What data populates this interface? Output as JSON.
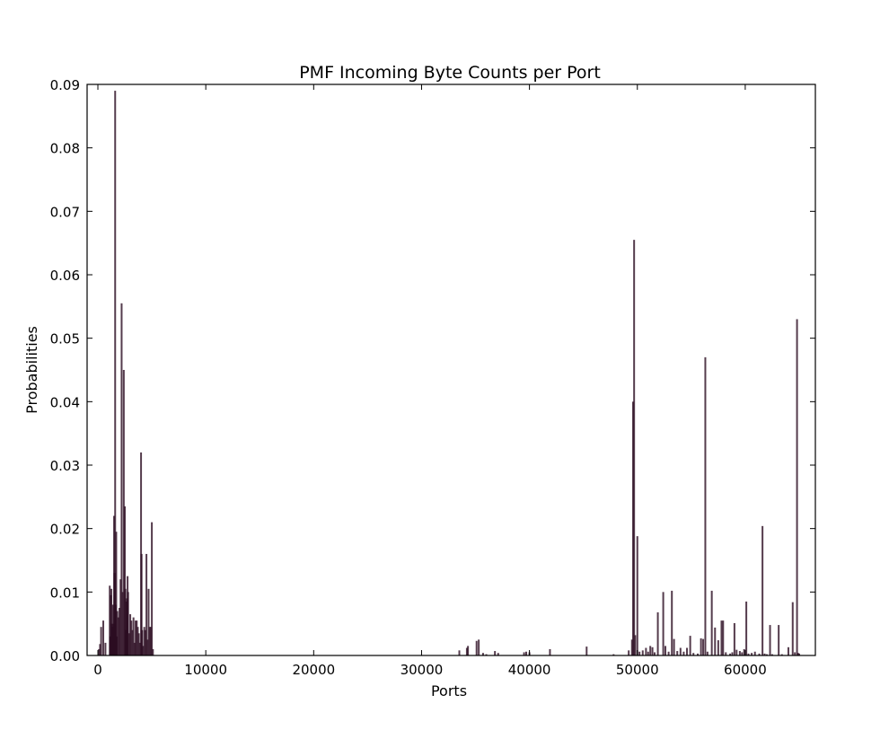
{
  "chart_data": {
    "type": "bar",
    "title": "PMF Incoming Byte Counts per Port",
    "xlabel": "Ports",
    "ylabel": "Probabilities",
    "xlim": [
      -1000,
      66500
    ],
    "ylim": [
      0,
      0.09
    ],
    "xticks": [
      0,
      10000,
      20000,
      30000,
      40000,
      50000,
      60000
    ],
    "xtick_labels": [
      "0",
      "10000",
      "20000",
      "30000",
      "40000",
      "50000",
      "60000"
    ],
    "yticks": [
      0,
      0.01,
      0.02,
      0.03,
      0.04,
      0.05,
      0.06,
      0.07,
      0.08,
      0.09
    ],
    "ytick_labels": [
      "0.00",
      "0.01",
      "0.02",
      "0.03",
      "0.04",
      "0.05",
      "0.06",
      "0.07",
      "0.08",
      "0.09"
    ],
    "grid": false,
    "bar_color": "#2a0b20",
    "series": [
      {
        "x": [
          100,
          200,
          300,
          500,
          700,
          1100,
          1150,
          1200,
          1250,
          1300,
          1350,
          1400,
          1450,
          1500,
          1550,
          1600,
          1650,
          1700,
          1750,
          1800,
          1900,
          2000,
          2100,
          2200,
          2300,
          2400,
          2500,
          2550,
          2600,
          2650,
          2700,
          2750,
          2800,
          2900,
          3000,
          3100,
          3200,
          3300,
          3400,
          3500,
          3600,
          3700,
          3800,
          3900,
          4000,
          4050,
          4100,
          4200,
          4300,
          4400,
          4500,
          4600,
          4700,
          4800,
          4900,
          5000,
          5100,
          33500,
          34200,
          34300,
          35100,
          35300,
          35700,
          36000,
          36800,
          37100,
          39500,
          39700,
          40000,
          41900,
          45300,
          47800,
          49200,
          49500,
          49600,
          49700,
          49800,
          50000,
          50200,
          50500,
          50800,
          51000,
          51200,
          51400,
          51600,
          51900,
          52400,
          52600,
          52900,
          53200,
          53400,
          53700,
          54000,
          54300,
          54600,
          54900,
          55200,
          55600,
          55900,
          56100,
          56300,
          56500,
          56900,
          57200,
          57500,
          57800,
          57950,
          58200,
          58600,
          58800,
          59000,
          59200,
          59500,
          59700,
          59900,
          60100,
          60300,
          60600,
          60900,
          61300,
          61600,
          61800,
          62000,
          62300,
          62500,
          63100,
          63400,
          64000,
          64400,
          64600,
          64800,
          64900,
          65000
        ],
        "values": [
          0.001,
          0.0018,
          0.0045,
          0.0055,
          0.002,
          0.011,
          0.003,
          0.0095,
          0.0105,
          0.005,
          0.0045,
          0.008,
          0.005,
          0.022,
          0.013,
          0.089,
          0.008,
          0.0195,
          0.003,
          0.007,
          0.006,
          0.0075,
          0.012,
          0.0555,
          0.01,
          0.045,
          0.0235,
          0.0105,
          0.004,
          0.0085,
          0.009,
          0.0125,
          0.01,
          0.0035,
          0.0065,
          0.0055,
          0.004,
          0.006,
          0.002,
          0.0055,
          0.0055,
          0.0045,
          0.0035,
          0.002,
          0.032,
          0.016,
          0.004,
          0.0015,
          0.0045,
          0.004,
          0.016,
          0.0025,
          0.0105,
          0.0045,
          0.0045,
          0.021,
          0.001,
          0.0008,
          0.0012,
          0.0015,
          0.0023,
          0.0025,
          0.0004,
          0.0002,
          0.0007,
          0.0004,
          0.0005,
          0.0006,
          0.0005,
          0.001,
          0.0014,
          0.0002,
          0.0008,
          0.0025,
          0.04,
          0.0655,
          0.0032,
          0.0188,
          0.0006,
          0.0008,
          0.0012,
          0.0006,
          0.0015,
          0.0013,
          0.0005,
          0.0068,
          0.01,
          0.0015,
          0.0006,
          0.0102,
          0.0026,
          0.0007,
          0.0012,
          0.0006,
          0.0012,
          0.0031,
          0.0004,
          0.0003,
          0.0027,
          0.0026,
          0.047,
          0.0006,
          0.0102,
          0.0044,
          0.0024,
          0.0055,
          0.0055,
          0.0005,
          0.0003,
          0.0005,
          0.0051,
          0.0009,
          0.0007,
          0.0005,
          0.001,
          0.0085,
          0.0003,
          0.0004,
          0.0006,
          0.0003,
          0.0204,
          0.0003,
          0.0002,
          0.0048,
          0.0002,
          0.0048,
          0.0002,
          0.0013,
          0.0084,
          0.0005,
          0.053,
          0.0004,
          0.0003
        ]
      }
    ]
  }
}
